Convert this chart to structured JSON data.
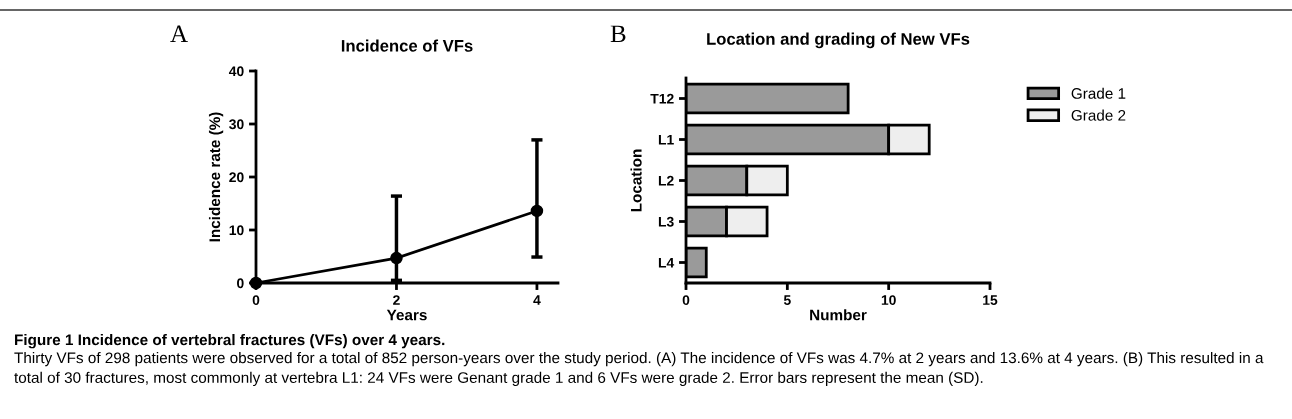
{
  "chart_data": [
    {
      "type": "line",
      "title": "Incidence of VFs",
      "xlabel": "Years",
      "ylabel": "Incidence rate (%)",
      "x": [
        0,
        2,
        4
      ],
      "values": [
        0,
        4.7,
        13.6
      ],
      "errors": [
        null,
        [
          0.5,
          16.4
        ],
        [
          4.9,
          27
        ]
      ],
      "color": "#000000",
      "marker": "circle",
      "line_style": "solid",
      "xlim": [
        0,
        4.3
      ],
      "xticks": [
        0,
        2,
        4
      ],
      "ylim": [
        0,
        40
      ],
      "yticks": [
        0,
        10,
        20,
        30,
        40
      ],
      "grid": false,
      "annotations": [
        "A",
        "Figure 1 Incidence of vertebral fractures (VFs) over 4 years.",
        "Thirty VFs of 298 patients were observed for a total of 852 person-years over the study period. (A) The incidence of VFs was 4.7% at 2 years and 13.6% at 4 years. (B) This resulted in a total of 30 fractures, most commonly at vertebra L1: 24 VFs were Genant grade 1 and 6 VFs were grade 2. Error bars represent the mean (SD)."
      ]
    },
    {
      "type": "bar",
      "orientation": "horizontal",
      "stacked": true,
      "title": "Location and grading of New VFs",
      "xlabel": "Number",
      "ylabel": "Location",
      "categories": [
        "T12",
        "L1",
        "L2",
        "L3",
        "L4"
      ],
      "series": [
        {
          "name": "Grade 1",
          "color": "#9a9a9a",
          "values": [
            8,
            10,
            3,
            2,
            1
          ]
        },
        {
          "name": "Grade 2",
          "color": "#eeeeee",
          "values": [
            null,
            2,
            2,
            2,
            null
          ]
        }
      ],
      "xlim": [
        0,
        15
      ],
      "xticks": [
        0,
        5,
        10,
        15
      ],
      "legend": "right",
      "grid": false,
      "annotations": [
        "B"
      ]
    }
  ]
}
